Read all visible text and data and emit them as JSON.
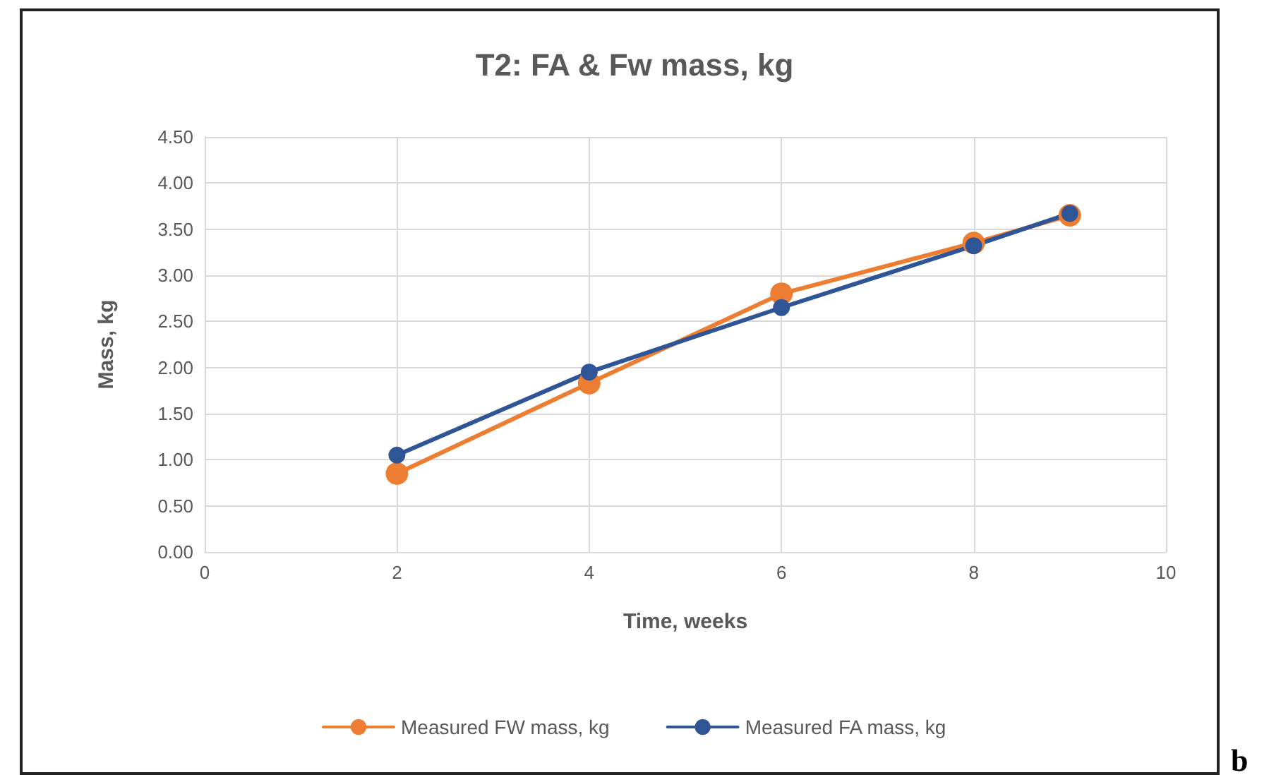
{
  "chart_data": {
    "type": "line",
    "title": "T2: FA & Fw mass, kg",
    "xlabel": "Time, weeks",
    "ylabel": "Mass, kg",
    "x": [
      2,
      4,
      6,
      8,
      9
    ],
    "series": [
      {
        "name": "Measured FW mass, kg",
        "color": "#ed7d31",
        "values": [
          0.85,
          1.83,
          2.8,
          3.35,
          3.65
        ]
      },
      {
        "name": "Measured FA mass, kg",
        "color": "#2f5597",
        "values": [
          1.05,
          1.95,
          2.65,
          3.32,
          3.67
        ]
      }
    ],
    "xlim": [
      0,
      10
    ],
    "xticks": [
      0,
      2,
      4,
      6,
      8,
      10
    ],
    "ylim": [
      0,
      4.5
    ],
    "yticks": [
      {
        "value": 0,
        "label": "0.00"
      },
      {
        "value": 0.5,
        "label": "0.50"
      },
      {
        "value": 1,
        "label": "1.00"
      },
      {
        "value": 1.5,
        "label": "1.50"
      },
      {
        "value": 2,
        "label": "2.00"
      },
      {
        "value": 2.5,
        "label": "2.50"
      },
      {
        "value": 3,
        "label": "3.00"
      },
      {
        "value": 3.5,
        "label": "3.50"
      },
      {
        "value": 4,
        "label": "4.00"
      },
      {
        "value": 4.5,
        "label": "4.50"
      }
    ],
    "grid": true,
    "legend": "bottom",
    "marker": "circle",
    "line_style": "solid",
    "annotations": [
      "b"
    ]
  }
}
